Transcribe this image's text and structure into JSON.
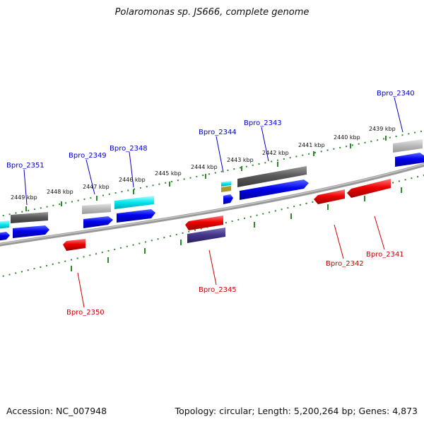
{
  "title": "Polaromonas sp. JS666, complete genome",
  "footer": {
    "accession": "Accession: NC_007948",
    "summary": "Topology: circular; Length: 5,200,264 bp; Genes: 4,873"
  },
  "scale_labels": [
    "2449 kbp",
    "2448 kbp",
    "2447 kbp",
    "2446 kbp",
    "2445 kbp",
    "2444 kbp",
    "2443 kbp",
    "2442 kbp",
    "2441 kbp",
    "2440 kbp",
    "2439 kbp"
  ],
  "gene_labels": {
    "forward": [
      "Bpro_2351",
      "Bpro_2349",
      "Bpro_2348",
      "Bpro_2344",
      "Bpro_2343",
      "Bpro_2340"
    ],
    "reverse": [
      "Bpro_2350",
      "Bpro_2345",
      "Bpro_2342",
      "Bpro_2341"
    ]
  },
  "colors": {
    "forward_label": "#0000cc",
    "reverse_label": "#cc0000",
    "forward_gene": "#0000ee",
    "reverse_gene": "#ee0000",
    "cyan": "#00e5ee",
    "grey": "#777777",
    "light_grey": "#bbbbbb",
    "slate": "#443388",
    "olive": "#aa9933",
    "tick": "#2a8a2a",
    "backbone": "#888888"
  }
}
